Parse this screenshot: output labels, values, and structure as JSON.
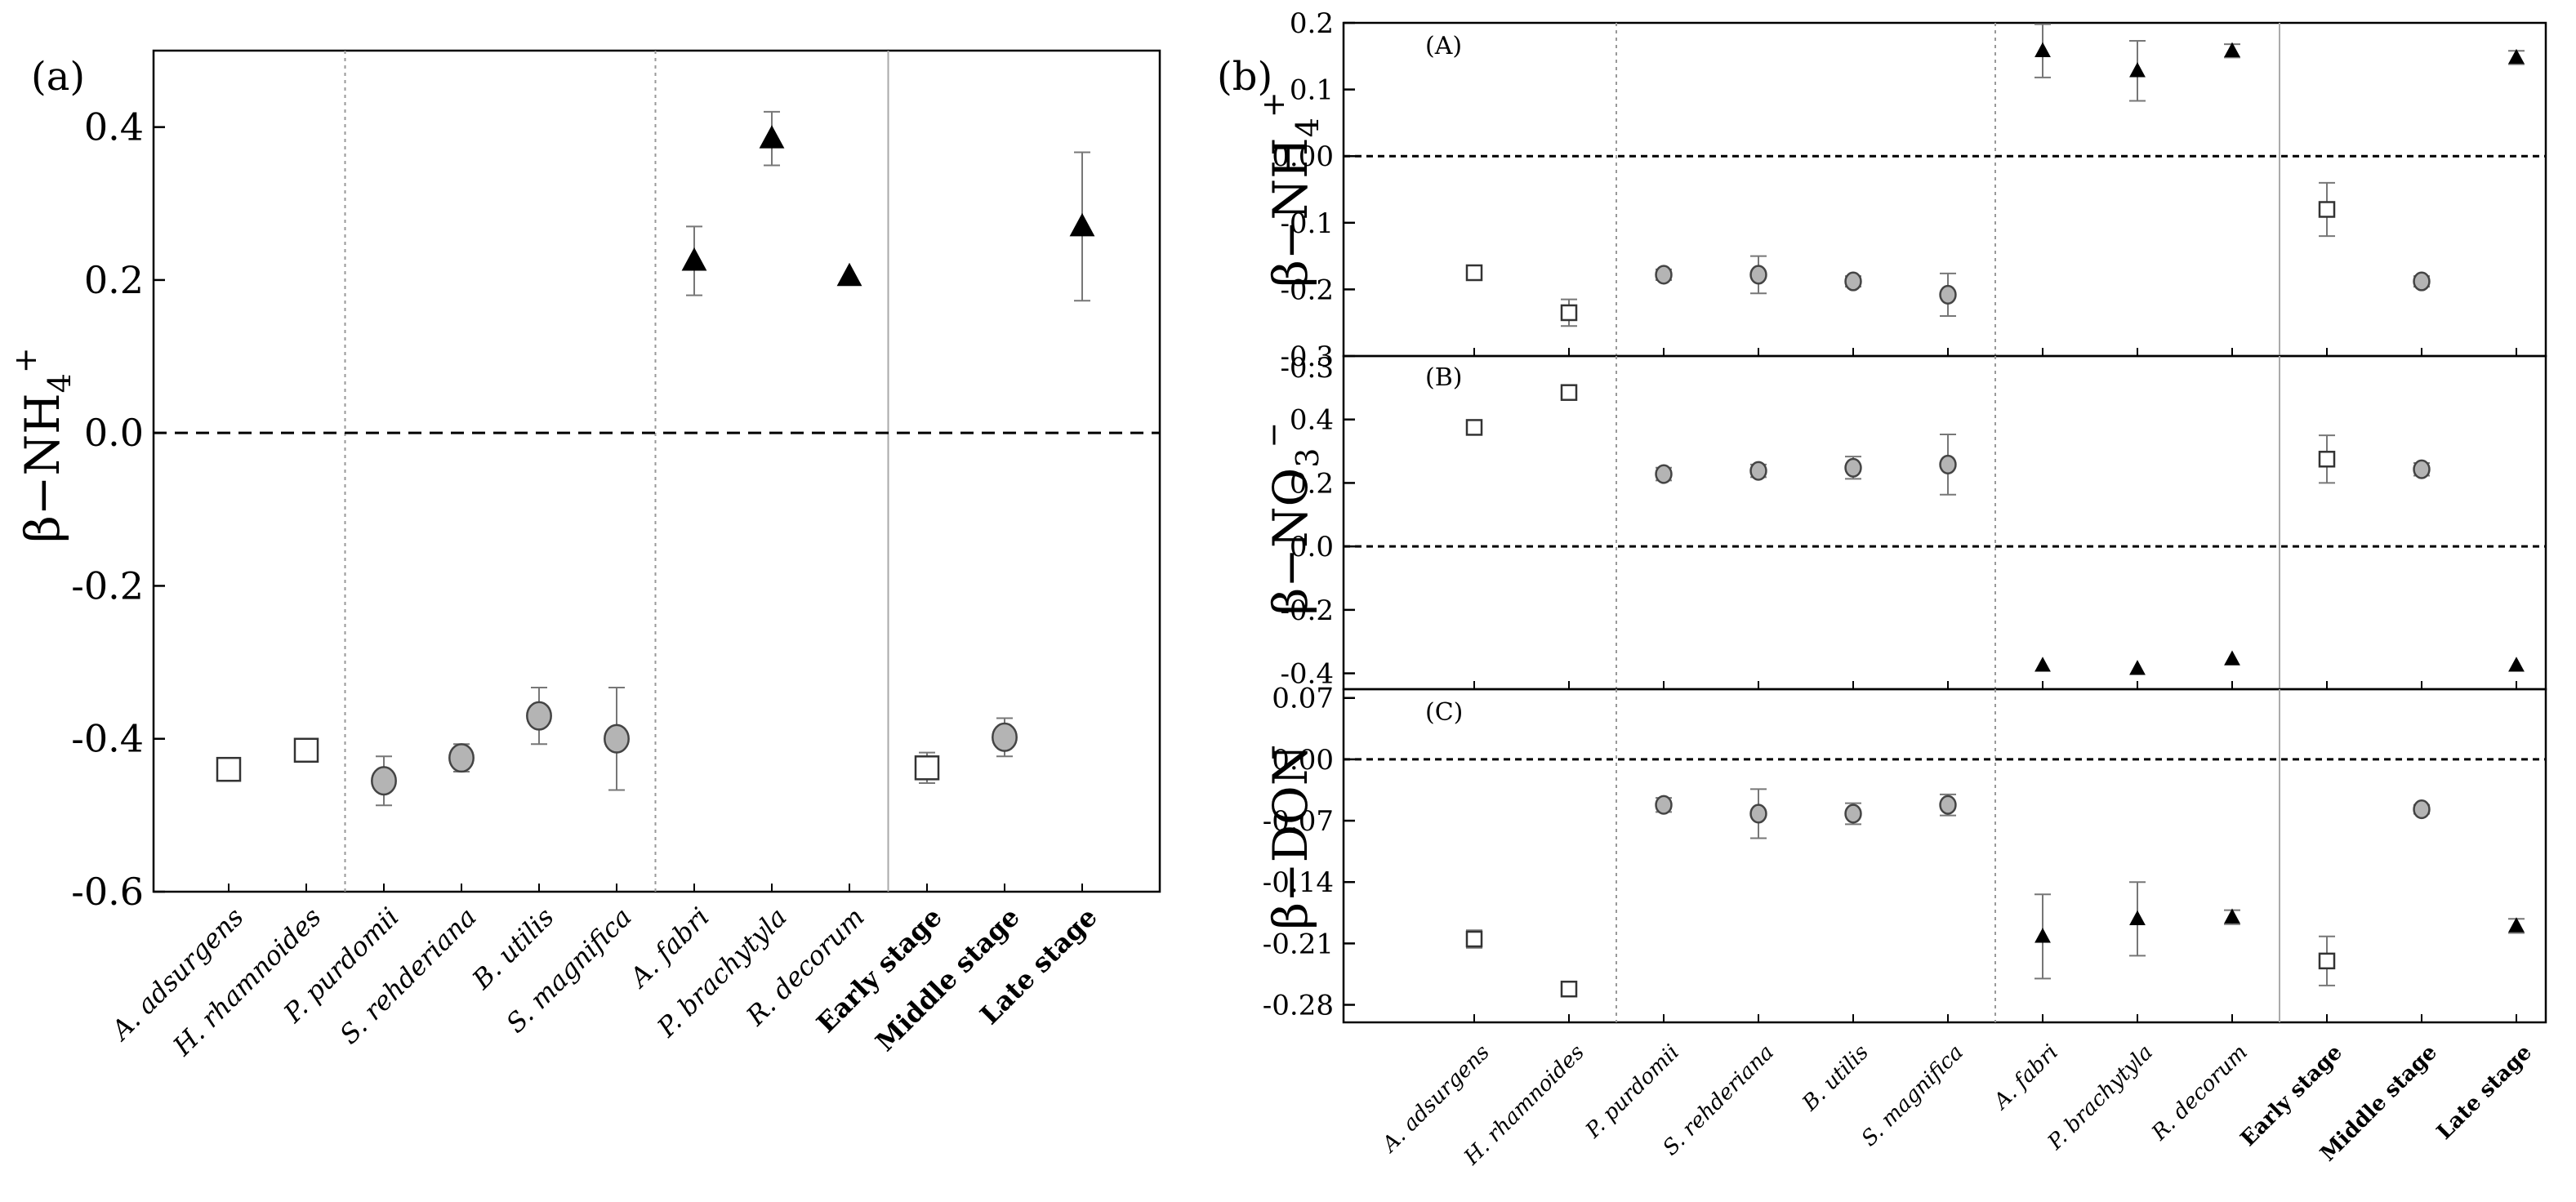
{
  "figure": {
    "categories": [
      "A. adsurgens",
      "H. rhamnoides",
      "P. purdomii",
      "S. rehderiana",
      "B. utilis",
      "S. magnifica",
      "A. fabri",
      "P. brachytyla",
      "R. decorum",
      "Early stage",
      "Middle stage",
      "Late stage"
    ],
    "bold_categories": [
      "Early stage",
      "Middle stage",
      "Late stage"
    ],
    "group_of_category": [
      "early",
      "early",
      "mid",
      "mid",
      "mid",
      "mid",
      "late",
      "late",
      "late",
      "early",
      "mid",
      "late"
    ],
    "marker_legend": {
      "early": "open-square",
      "mid": "grey-circle",
      "late": "black-triangle"
    }
  },
  "chart_data": [
    {
      "type": "scatter",
      "panel_label": "(a)",
      "ylabel": "β−NH4+",
      "ylabel_main": "β−NH",
      "ylabel_sub": "4",
      "ylabel_sup": "+",
      "ylim": [
        -0.6,
        0.5
      ],
      "yticks": [
        -0.6,
        -0.4,
        -0.2,
        0.0,
        0.2,
        0.4
      ],
      "ytick_labels": [
        "-0.6",
        "-0.4",
        "-0.2",
        "0.0",
        "0.2",
        "0.4"
      ],
      "reference_line": 0,
      "values": [
        -0.44,
        -0.415,
        -0.455,
        -0.425,
        -0.37,
        -0.4,
        0.225,
        0.385,
        0.205,
        -0.438,
        -0.398,
        0.27
      ],
      "errors": [
        0.015,
        0.015,
        0.032,
        0.018,
        0.037,
        0.067,
        0.045,
        0.035,
        0.0,
        0.02,
        0.025,
        0.097
      ]
    },
    {
      "type": "scatter",
      "panel_label": "(b)",
      "subpanel_label": "(A)",
      "ylabel": "β−NH4+",
      "ylabel_main": "β−NH",
      "ylabel_sub": "4",
      "ylabel_sup": "+",
      "ylim": [
        -0.3,
        0.2
      ],
      "yticks": [
        -0.3,
        -0.2,
        -0.1,
        0.0,
        0.1,
        0.2
      ],
      "ytick_labels": [
        "-0.3",
        "-0.2",
        "-0.1",
        "0.00",
        "0.1",
        "0.2"
      ],
      "reference_line": 0,
      "values": [
        -0.175,
        -0.235,
        -0.178,
        -0.178,
        -0.188,
        -0.208,
        0.158,
        0.128,
        0.158,
        -0.08,
        -0.188,
        0.148
      ],
      "errors": [
        0.008,
        0.02,
        0.008,
        0.028,
        0.008,
        0.032,
        0.04,
        0.045,
        0.01,
        0.04,
        0.008,
        0.01
      ]
    },
    {
      "type": "scatter",
      "subpanel_label": "(B)",
      "ylabel": "β−NO3−",
      "ylabel_main": "β−NO",
      "ylabel_sub": "3",
      "ylabel_sup": "−",
      "ylim": [
        -0.45,
        0.6
      ],
      "yticks": [
        -0.4,
        -0.2,
        0.0,
        0.2,
        0.4
      ],
      "ytick_labels": [
        "-0.4",
        "-0.2",
        "0.0",
        "0.2",
        "0.4"
      ],
      "top_tick_label": "-0.3",
      "reference_line": 0,
      "values": [
        0.375,
        0.485,
        0.228,
        0.238,
        0.248,
        0.258,
        -0.375,
        -0.385,
        -0.355,
        0.275,
        0.243,
        -0.375
      ],
      "errors": [
        0.02,
        0.015,
        0.02,
        0.02,
        0.035,
        0.095,
        0.0,
        0.0,
        0.0,
        0.075,
        0.02,
        0.0
      ]
    },
    {
      "type": "scatter",
      "subpanel_label": "(C)",
      "ylabel": "β−DON",
      "ylabel_main": "β−DON",
      "ylabel_sub": "",
      "ylabel_sup": "",
      "ylim": [
        -0.3,
        0.08
      ],
      "yticks": [
        -0.28,
        -0.21,
        -0.14,
        -0.07,
        0.0,
        0.07
      ],
      "ytick_labels": [
        "-0.28",
        "-0.21",
        "-0.14",
        "-0.07",
        "0.00",
        "0.07"
      ],
      "reference_line": 0,
      "values": [
        -0.205,
        -0.262,
        -0.052,
        -0.062,
        -0.062,
        -0.052,
        -0.202,
        -0.182,
        -0.18,
        -0.23,
        -0.057,
        -0.19
      ],
      "errors": [
        0.01,
        0.005,
        0.008,
        0.028,
        0.012,
        0.012,
        0.048,
        0.042,
        0.008,
        0.028,
        0.005,
        0.008
      ]
    }
  ]
}
